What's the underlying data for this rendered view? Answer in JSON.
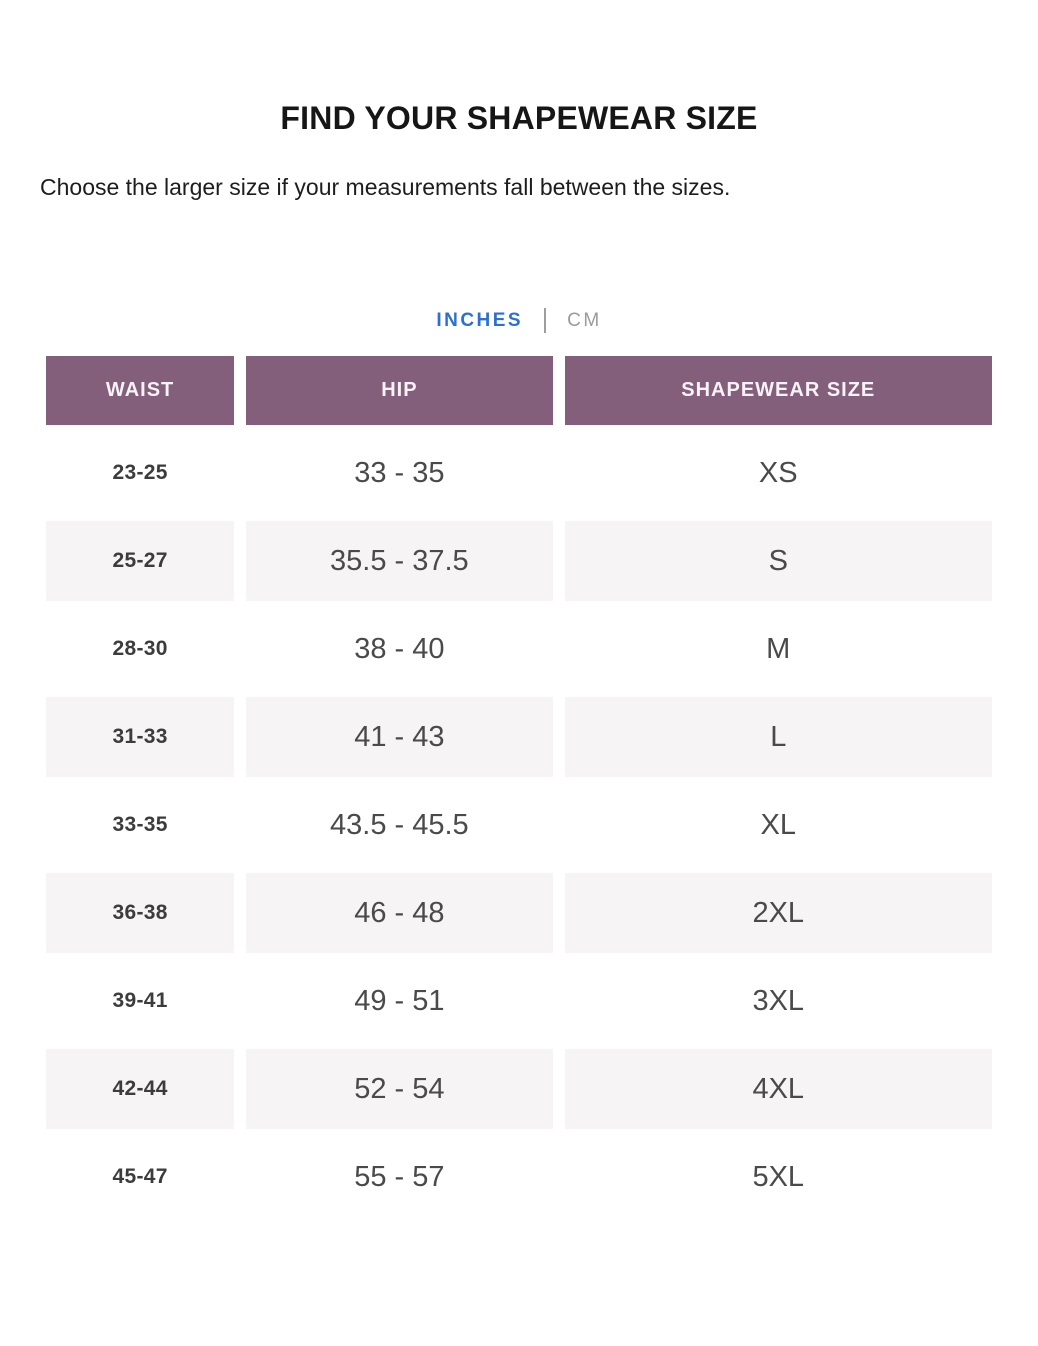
{
  "page": {
    "title": "FIND YOUR SHAPEWEAR SIZE",
    "subtitle": "Choose the larger size if your measurements fall between the sizes."
  },
  "unit_toggle": {
    "options": [
      {
        "label": "INCHES",
        "active": true
      },
      {
        "label": "CM",
        "active": false
      }
    ],
    "separator": "|",
    "active_color": "#2D6FD2",
    "inactive_color": "#9B9B9B"
  },
  "table": {
    "header_bg": "#845F7C",
    "header_text_color": "#FFFFFF",
    "row_alt_bg": "#F6F4F4",
    "headers": [
      "WAIST",
      "HIP",
      "SHAPEWEAR SIZE"
    ],
    "rows": [
      {
        "waist": "23-25",
        "hip": "33 - 35",
        "size": "XS"
      },
      {
        "waist": "25-27",
        "hip": "35.5 - 37.5",
        "size": "S"
      },
      {
        "waist": "28-30",
        "hip": "38 - 40",
        "size": "M"
      },
      {
        "waist": "31-33",
        "hip": "41 - 43",
        "size": "L"
      },
      {
        "waist": "33-35",
        "hip": "43.5 - 45.5",
        "size": "XL"
      },
      {
        "waist": "36-38",
        "hip": "46 - 48",
        "size": "2XL"
      },
      {
        "waist": "39-41",
        "hip": "49 - 51",
        "size": "3XL"
      },
      {
        "waist": "42-44",
        "hip": "52 - 54",
        "size": "4XL"
      },
      {
        "waist": "45-47",
        "hip": "55 - 57",
        "size": "5XL"
      }
    ]
  }
}
